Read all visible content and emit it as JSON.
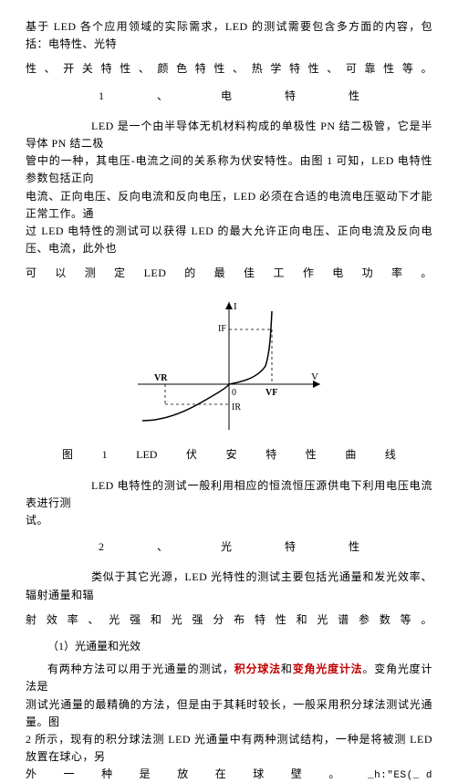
{
  "p1_a": "基于 LED 各个应用领域的实际需求，LED 的测试需要包含多方面的内容，包括：电特性、光特",
  "p1_b_chars": [
    "性",
    "、",
    "开",
    "关",
    "特",
    "性",
    "、",
    "颜",
    "色",
    "特",
    "性",
    "、",
    "热",
    "学",
    "特",
    "性",
    "、",
    "可",
    "靠",
    "性",
    "等",
    "。"
  ],
  "h1_chars": [
    "1",
    "、",
    "电",
    "特",
    "性"
  ],
  "p2_a": "LED 是一个由半导体无机材料构成的单极性 PN 结二极管，它是半导体 PN 结二极",
  "p2_b": "管中的一种，其电压-电流之间的关系称为伏安特性。由图 1 可知，LED 电特性参数包括正向",
  "p2_c": "电流、正向电压、反向电流和反向电压，LED 必须在合适的电流电压驱动下才能正常工作。通",
  "p2_d": "过 LED 电特性的测试可以获得 LED 的最大允许正向电压、正向电流及反向电压、电流，此外也",
  "p2_e_chars": [
    "可",
    "以",
    "测",
    "定",
    "LED",
    "的",
    "最",
    "佳",
    "工",
    "作",
    "电",
    "功",
    "率",
    "。"
  ],
  "fig_labels": {
    "I": "I",
    "IF": "IF",
    "VR": "VR",
    "O": "0",
    "VF": "VF",
    "V": "V",
    "IR": "IR"
  },
  "fig_caption_chars": [
    "图",
    "1",
    "LED",
    "伏",
    "安",
    "特",
    "性",
    "曲",
    "线"
  ],
  "p3_a": "LED 电特性的测试一般利用相应的恒流恒压源供电下利用电压电流表进行测",
  "p3_b": "试。",
  "h2_chars": [
    "2",
    "、",
    "光",
    "特",
    "性"
  ],
  "p4_a": "类似于其它光源，LED 光特性的测试主要包括光通量和发光效率、辐射通量和辐",
  "p4_b_chars": [
    "射",
    "效",
    "率",
    "、",
    "光",
    "强",
    "和",
    "光",
    "强",
    "分",
    "布",
    "特",
    "性",
    "和",
    "光",
    "谱",
    "参",
    "数",
    "等",
    "。"
  ],
  "sub1": "（1）光通量和光效",
  "p5_a_prefix": "有两种方法可以用于光通量的测试，",
  "p5_a_red1": "积分球法",
  "p5_a_mid": "和",
  "p5_a_red2": "变角光度计法",
  "p5_a_suffix": "。变角光度计法是",
  "p5_b": "测试光通量的最精确的方法，但是由于其耗时较长，一般采用积分球法测试光通量。图",
  "p5_c": "2 所示，现有的积分球法测 LED 光通量中有两种测试结构，一种是将被测 LED 放置在球心，另",
  "p5_d_head_chars": [
    "外",
    "一",
    "种",
    "是",
    "放",
    "在",
    "球",
    "壁",
    "。"
  ],
  "p5_d_tail": "_h:\"ES(_   d"
}
